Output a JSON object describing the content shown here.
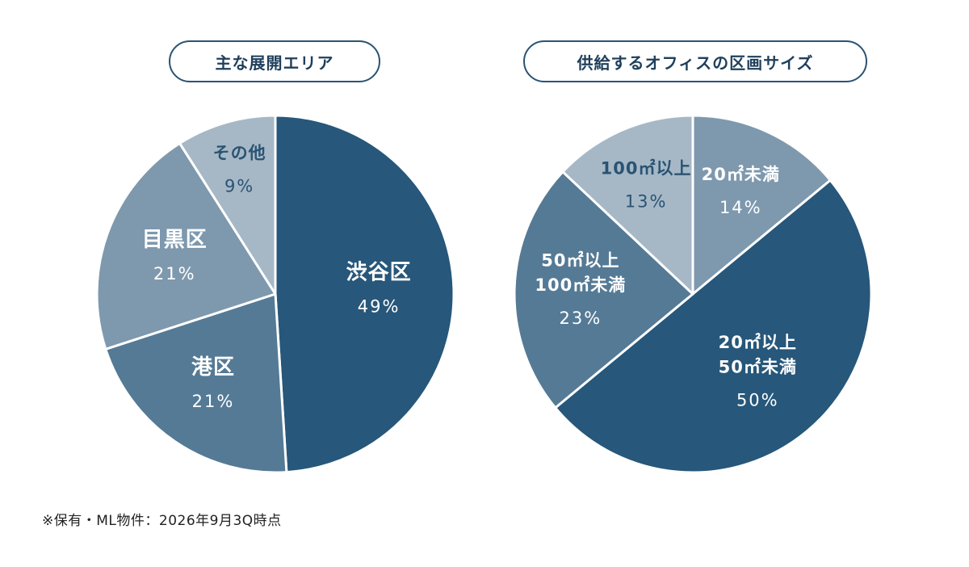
{
  "chart_data": [
    {
      "type": "pie",
      "title": "主な展開エリア",
      "slices": [
        {
          "label": "渋谷区",
          "percent_label": "49%",
          "value": 49,
          "color": "#27577a",
          "label_color": "#ffffff"
        },
        {
          "label": "港区",
          "percent_label": "21%",
          "value": 21,
          "color": "#557a95",
          "label_color": "#ffffff"
        },
        {
          "label": "目黒区",
          "percent_label": "21%",
          "value": 21,
          "color": "#7e99ae",
          "label_color": "#ffffff"
        },
        {
          "label": "その他",
          "percent_label": "9%",
          "value": 9,
          "color": "#a6b8c6",
          "label_color": "#2a5373"
        }
      ]
    },
    {
      "type": "pie",
      "title": "供給するオフィスの区画サイズ",
      "slices": [
        {
          "label": "20㎡未満",
          "percent_label": "14%",
          "value": 14,
          "color": "#7e99ae",
          "label_color": "#ffffff"
        },
        {
          "label": "20㎡以上\n50㎡未満",
          "percent_label": "50%",
          "value": 50,
          "color": "#27577a",
          "label_color": "#ffffff"
        },
        {
          "label": "50㎡以上\n100㎡未満",
          "percent_label": "23%",
          "value": 23,
          "color": "#557a95",
          "label_color": "#ffffff"
        },
        {
          "label": "100㎡以上",
          "percent_label": "13%",
          "value": 13,
          "color": "#a6b8c6",
          "label_color": "#2a5373"
        }
      ]
    }
  ],
  "footnote": "※保有・ML物件：2026年9月3Q時点"
}
